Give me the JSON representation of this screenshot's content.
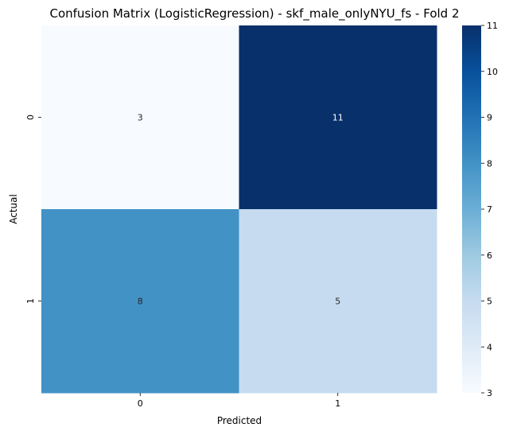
{
  "chart_data": {
    "type": "heatmap",
    "title": "Confusion Matrix (LogisticRegression) - skf_male_onlyNYU_fs - Fold 2",
    "xlabel": "Predicted",
    "ylabel": "Actual",
    "x_categories": [
      "0",
      "1"
    ],
    "y_categories": [
      "0",
      "1"
    ],
    "values": [
      [
        3,
        11
      ],
      [
        8,
        5
      ]
    ],
    "colormap": "Blues",
    "colorbar": {
      "min": 3,
      "max": 11,
      "ticks": [
        "3",
        "4",
        "5",
        "6",
        "7",
        "8",
        "9",
        "10",
        "11"
      ]
    },
    "colors": {
      "low": "#f7fbff",
      "high": "#08306b",
      "annot_dark_text": "#262626",
      "annot_light_text": "#ffffff"
    }
  }
}
